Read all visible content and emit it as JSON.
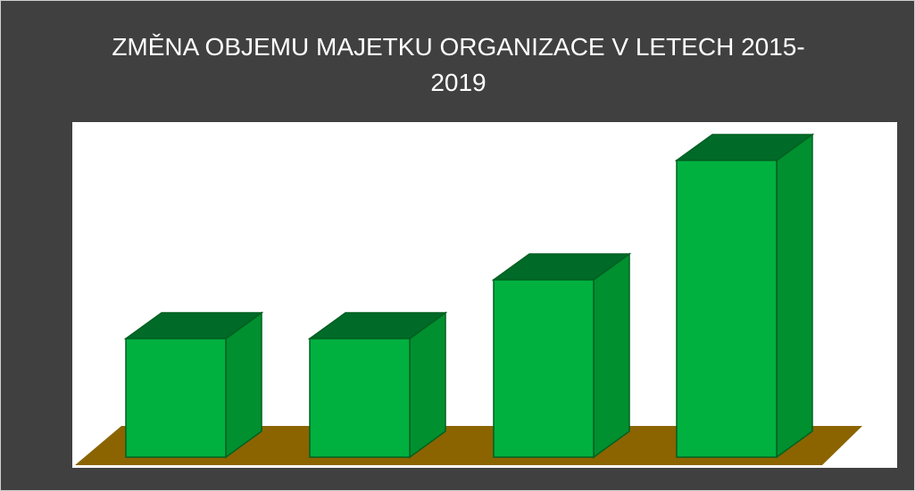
{
  "chart_data": {
    "type": "bar3d",
    "title": "ZMĚNA OBJEMU MAJETKU ORGANIZACE V LETECH 2015-2019",
    "categories": [
      null,
      null,
      null,
      null
    ],
    "values": [
      133,
      133,
      199,
      333
    ],
    "color": "#00b140"
  }
}
